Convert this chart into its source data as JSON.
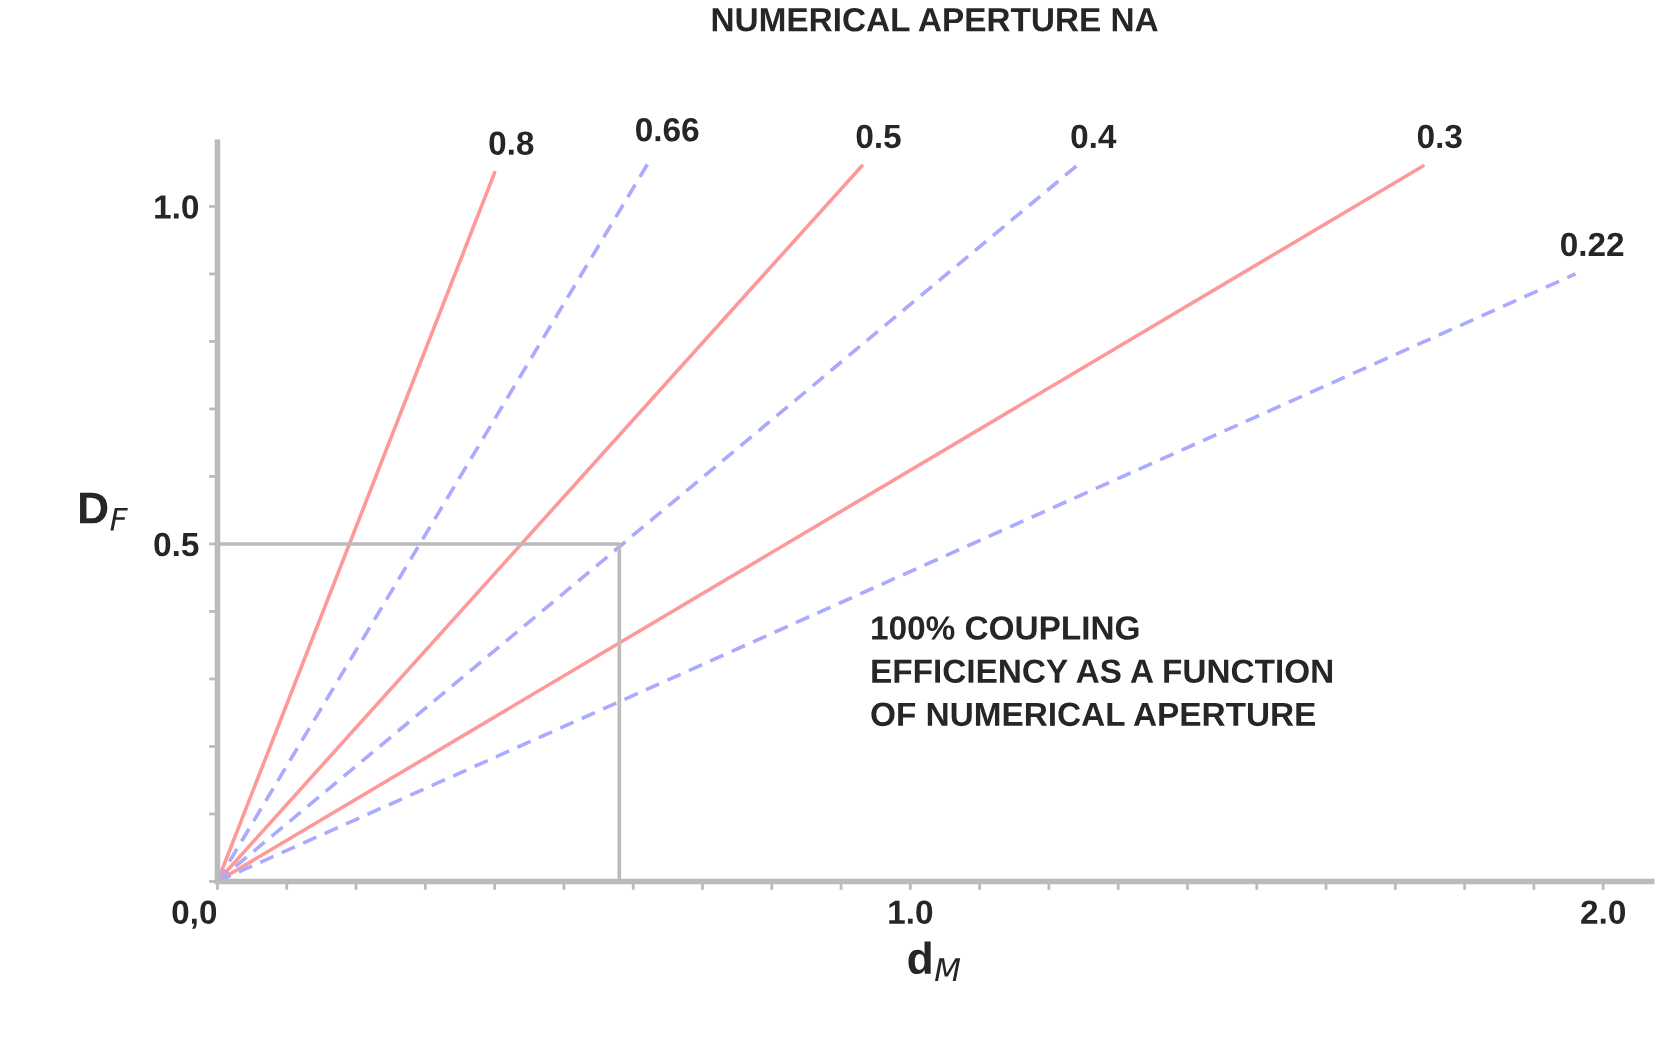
{
  "chart_data": {
    "type": "line",
    "title": "NUMERICAL APERTURE NA",
    "xlabel": "d$_{M}$",
    "ylabel": "D$_{F}$",
    "xlim": [
      0,
      2.07
    ],
    "ylim": [
      0,
      1.095
    ],
    "xticks": [
      {
        "value": 0,
        "label": "0,0"
      },
      {
        "value": 0.1,
        "label": null
      },
      {
        "value": 0.2,
        "label": null
      },
      {
        "value": 0.3,
        "label": null
      },
      {
        "value": 0.4,
        "label": null
      },
      {
        "value": 0.5,
        "label": null
      },
      {
        "value": 0.6,
        "label": null
      },
      {
        "value": 0.7,
        "label": null
      },
      {
        "value": 0.8,
        "label": null
      },
      {
        "value": 0.9,
        "label": null
      },
      {
        "value": 1,
        "label": "1.0"
      },
      {
        "value": 1.1,
        "label": null
      },
      {
        "value": 1.2,
        "label": null
      },
      {
        "value": 1.3,
        "label": null
      },
      {
        "value": 1.4,
        "label": null
      },
      {
        "value": 1.5,
        "label": null
      },
      {
        "value": 1.6,
        "label": null
      },
      {
        "value": 1.7,
        "label": null
      },
      {
        "value": 1.8,
        "label": null
      },
      {
        "value": 1.9,
        "label": null
      },
      {
        "value": 2,
        "label": "2.0"
      }
    ],
    "yticks": [
      {
        "value": 0,
        "label": null
      },
      {
        "value": 0.1,
        "label": null
      },
      {
        "value": 0.2,
        "label": null
      },
      {
        "value": 0.3,
        "label": null
      },
      {
        "value": 0.4,
        "label": null
      },
      {
        "value": 0.5,
        "label": "0.5"
      },
      {
        "value": 0.6,
        "label": null
      },
      {
        "value": 0.7,
        "label": null
      },
      {
        "value": 0.8,
        "label": null
      },
      {
        "value": 0.9,
        "label": null
      },
      {
        "value": 1,
        "label": "1.0"
      }
    ],
    "grid": false,
    "legend": false,
    "marker": "none",
    "series": [
      {
        "name": "0.8",
        "color": "#ff9999",
        "line_style": "solid",
        "x": [
          0,
          0.4
        ],
        "values": [
          0,
          1.05
        ]
      },
      {
        "name": "0.66",
        "color": "#aaaaff",
        "line_style": "dashed",
        "x": [
          0,
          0.625
        ],
        "values": [
          0,
          1.07
        ]
      },
      {
        "name": "0.5",
        "color": "#ff9999",
        "line_style": "solid",
        "x": [
          0,
          0.93
        ],
        "values": [
          0,
          1.06
        ]
      },
      {
        "name": "0.4",
        "color": "#aaaaff",
        "line_style": "dashed",
        "x": [
          0,
          1.24
        ],
        "values": [
          0,
          1.06
        ]
      },
      {
        "name": "0.3",
        "color": "#ff9999",
        "line_style": "solid",
        "x": [
          0,
          1.74
        ],
        "values": [
          0,
          1.06
        ]
      },
      {
        "name": "0.22",
        "color": "#aaaaff",
        "line_style": "dashed",
        "x": [
          0,
          1.96
        ],
        "values": [
          0,
          0.9
        ]
      },
      {
        "color": "#bbbbbb",
        "line_style": "solid",
        "x": [
          0,
          0.58,
          0.58
        ],
        "values": [
          0.5,
          0.5,
          0
        ]
      }
    ],
    "annotations": [
      "100% COUPLING\nEFFICIENCY AS A FUNCTION\nOF NUMERICAL APERTURE"
    ]
  }
}
